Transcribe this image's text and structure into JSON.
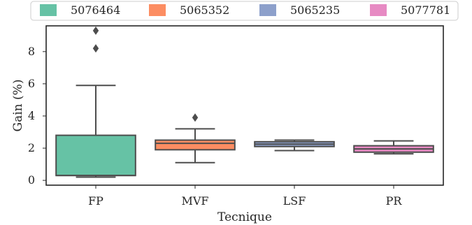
{
  "chart_data": {
    "type": "box",
    "xlabel": "Tecnique",
    "ylabel": "Gain (%)",
    "ylim": [
      -0.3,
      9.6
    ],
    "yticks": [
      0,
      2,
      4,
      6,
      8
    ],
    "ytick_labels": [
      "0",
      "2",
      "4",
      "6",
      "8"
    ],
    "categories": [
      "FP",
      "MVF",
      "LSF",
      "PR"
    ],
    "boxes": [
      {
        "category": "FP",
        "whisker_low": 0.2,
        "q1": 0.3,
        "median": 0.3,
        "q3": 2.8,
        "whisker_high": 5.9,
        "outliers": [
          8.2,
          9.3
        ],
        "color": "#66c2a5"
      },
      {
        "category": "MVF",
        "whisker_low": 1.1,
        "q1": 1.9,
        "median": 2.3,
        "q3": 2.5,
        "whisker_high": 3.2,
        "outliers": [
          3.9
        ],
        "color": "#fc8d62"
      },
      {
        "category": "LSF",
        "whisker_low": 1.85,
        "q1": 2.1,
        "median": 2.25,
        "q3": 2.4,
        "whisker_high": 2.5,
        "outliers": [],
        "color": "#8da0cb"
      },
      {
        "category": "PR",
        "whisker_low": 1.65,
        "q1": 1.75,
        "median": 1.95,
        "q3": 2.15,
        "whisker_high": 2.45,
        "outliers": [],
        "color": "#e78ac3"
      }
    ],
    "legend": {
      "placement": "top",
      "entries": [
        {
          "label": "5076464",
          "color": "#66c2a5"
        },
        {
          "label": "5065352",
          "color": "#fc8d62"
        },
        {
          "label": "5065235",
          "color": "#8da0cb"
        },
        {
          "label": "5077781",
          "color": "#e78ac3"
        }
      ]
    },
    "grid": false
  }
}
